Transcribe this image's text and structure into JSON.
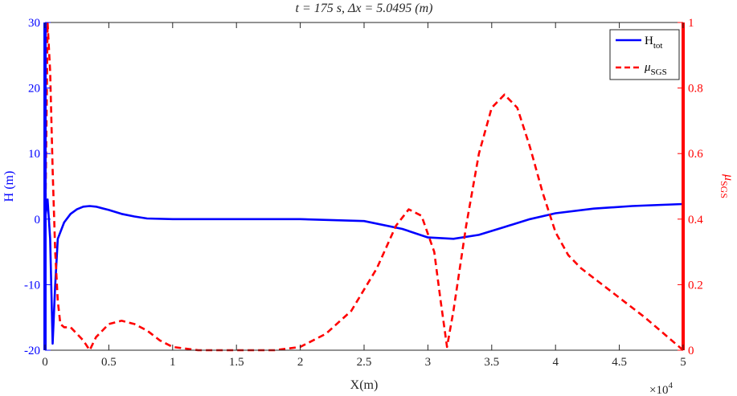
{
  "chart_data": {
    "type": "line",
    "title": "t = 175 s,  Δx = 5.0495 (m)",
    "xlabel": "X(m)",
    "x_exponent_label": "×10",
    "x_exponent_power": "4",
    "xlim": [
      0,
      5
    ],
    "xticks": [
      0,
      0.5,
      1,
      1.5,
      2,
      2.5,
      3,
      3.5,
      4,
      4.5,
      5
    ],
    "xtick_labels": [
      "0",
      "0.5",
      "1",
      "1.5",
      "2",
      "2.5",
      "3",
      "3.5",
      "4",
      "4.5",
      "5"
    ],
    "left_axis": {
      "label": "H (m)",
      "color": "#0000ff",
      "ylim": [
        -20,
        30
      ],
      "ticks": [
        -20,
        -10,
        0,
        10,
        20,
        30
      ],
      "tick_labels": [
        "-20",
        "-10",
        "0",
        "10",
        "20",
        "30"
      ]
    },
    "right_axis": {
      "label": "μ",
      "label_sub": "SGS",
      "color": "#ff0000",
      "ylim": [
        0,
        1
      ],
      "ticks": [
        0,
        0.2,
        0.4,
        0.6,
        0.8,
        1
      ],
      "tick_labels": [
        "0",
        "0.2",
        "0.4",
        "0.6",
        "0.8",
        "1"
      ]
    },
    "legend": {
      "placement": "top-right",
      "entries": [
        {
          "name": "H",
          "sub": "tot",
          "color": "#0000ff",
          "style": "solid"
        },
        {
          "name": "μ",
          "sub": "SGS",
          "color": "#ff0000",
          "style": "dashed"
        }
      ]
    },
    "series": [
      {
        "name": "H_tot",
        "axis": "left",
        "color": "#0000ff",
        "style": "solid",
        "x": [
          0.0,
          0.02,
          0.04,
          0.06,
          0.08,
          0.1,
          0.15,
          0.2,
          0.25,
          0.3,
          0.35,
          0.4,
          0.5,
          0.6,
          0.7,
          0.8,
          1.0,
          1.5,
          2.0,
          2.5,
          2.8,
          3.0,
          3.2,
          3.4,
          3.6,
          3.8,
          4.0,
          4.3,
          4.6,
          5.0
        ],
        "y": [
          0,
          3,
          -3,
          -19,
          -10,
          -3,
          -0.5,
          0.8,
          1.5,
          1.9,
          2.0,
          1.9,
          1.4,
          0.8,
          0.4,
          0.1,
          0.0,
          0.0,
          0.0,
          -0.3,
          -1.5,
          -2.8,
          -3.0,
          -2.4,
          -1.2,
          0.0,
          0.9,
          1.6,
          2.0,
          2.3
        ]
      },
      {
        "name": "mu_SGS",
        "axis": "right",
        "color": "#ff0000",
        "style": "dashed",
        "x": [
          0.0,
          0.02,
          0.04,
          0.06,
          0.08,
          0.1,
          0.12,
          0.15,
          0.2,
          0.3,
          0.35,
          0.4,
          0.5,
          0.6,
          0.7,
          0.8,
          0.9,
          1.0,
          1.2,
          1.5,
          1.8,
          2.0,
          2.2,
          2.4,
          2.6,
          2.75,
          2.85,
          2.95,
          3.05,
          3.1,
          3.15,
          3.2,
          3.3,
          3.4,
          3.5,
          3.6,
          3.7,
          3.8,
          3.9,
          4.0,
          4.1,
          4.2,
          4.3,
          4.5,
          4.7,
          5.0
        ],
        "y": [
          0.3,
          1.0,
          0.85,
          0.55,
          0.3,
          0.15,
          0.08,
          0.07,
          0.07,
          0.03,
          0.0,
          0.04,
          0.08,
          0.09,
          0.08,
          0.06,
          0.03,
          0.01,
          0.0,
          0.0,
          0.0,
          0.01,
          0.05,
          0.12,
          0.25,
          0.38,
          0.43,
          0.41,
          0.3,
          0.15,
          0.01,
          0.12,
          0.38,
          0.6,
          0.74,
          0.78,
          0.74,
          0.62,
          0.48,
          0.36,
          0.29,
          0.25,
          0.22,
          0.16,
          0.1,
          0.0
        ]
      }
    ]
  }
}
